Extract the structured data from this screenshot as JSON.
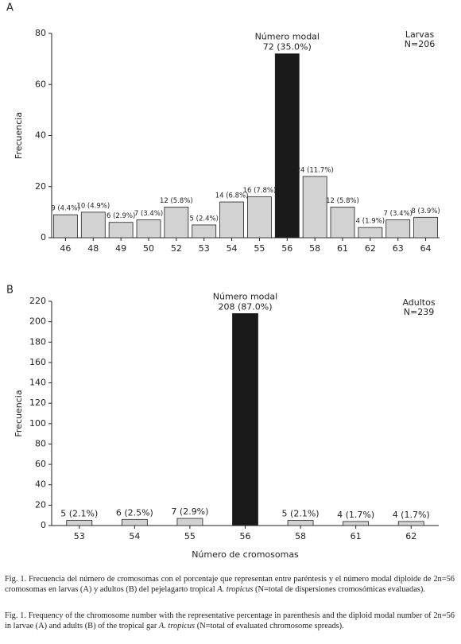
{
  "chart_data": [
    {
      "type": "bar",
      "panel": "A",
      "ylabel": "Frecuencia",
      "categories": [
        "46",
        "48",
        "49",
        "50",
        "52",
        "53",
        "54",
        "55",
        "56",
        "58",
        "61",
        "62",
        "63",
        "64"
      ],
      "values": [
        9,
        10,
        6,
        7,
        12,
        5,
        14,
        16,
        72,
        24,
        12,
        4,
        7,
        8
      ],
      "value_labels": [
        "9 (4.4%)",
        "10 (4.9%)",
        "6 (2.9%)",
        "7 (3.4%)",
        "12 (5.8%)",
        "5 (2.4%)",
        "14 (6.8%)",
        "16 (7.8%)",
        "72 (35.0%)",
        "24 (11.7%)",
        "12 (5.8%)",
        "4 (1.9%)",
        "7 (3.4%)",
        "8 (3.9%)"
      ],
      "colors": [
        "#d2d2d2",
        "#d2d2d2",
        "#d2d2d2",
        "#d2d2d2",
        "#d2d2d2",
        "#d2d2d2",
        "#d2d2d2",
        "#d2d2d2",
        "#1a1a1a",
        "#d2d2d2",
        "#d2d2d2",
        "#d2d2d2",
        "#d2d2d2",
        "#d2d2d2"
      ],
      "modal_label": "Número modal",
      "annotations": [
        "Larvas",
        "N=206"
      ],
      "ylim": [
        0,
        80
      ],
      "yticks": [
        0,
        20,
        40,
        60,
        80
      ]
    },
    {
      "type": "bar",
      "panel": "B",
      "ylabel": "Frecuencia",
      "xlabel": "Número de cromosomas",
      "categories": [
        "53",
        "54",
        "55",
        "56",
        "58",
        "61",
        "62"
      ],
      "values": [
        5,
        6,
        7,
        208,
        5,
        4,
        4
      ],
      "value_labels": [
        "5 (2.1%)",
        "6 (2.5%)",
        "7 (2.9%)",
        "208 (87.0%)",
        "5 (2.1%)",
        "4 (1.7%)",
        "4 (1.7%)"
      ],
      "colors": [
        "#d2d2d2",
        "#d2d2d2",
        "#d2d2d2",
        "#1a1a1a",
        "#d2d2d2",
        "#d2d2d2",
        "#d2d2d2"
      ],
      "modal_label": "Número modal",
      "annotations": [
        "Adultos",
        "N=239"
      ],
      "ylim": [
        0,
        220
      ],
      "yticks": [
        0,
        20,
        40,
        60,
        80,
        100,
        120,
        140,
        160,
        180,
        200,
        220
      ]
    }
  ],
  "captions": [
    [
      "Fig. 1. Frecuencia del número de cromosomas con el porcentaje que representan entre paréntesis y el número modal diploide de 2n=56 cromosomas en larvas (A) y adultos (B) del pejelagarto tropical ",
      "A. tropicus",
      " (N=total de dispersiones cromosómicas evaluadas)."
    ],
    [
      "Fig. 1. Frequency of the chromosome number with the representative percentage in parenthesis and the diploid modal number of 2n=56 in larvae (A) and adults (B) of the tropical gar ",
      "A. tropicus",
      " (N=total of evaluated chromosome spreads)."
    ]
  ]
}
